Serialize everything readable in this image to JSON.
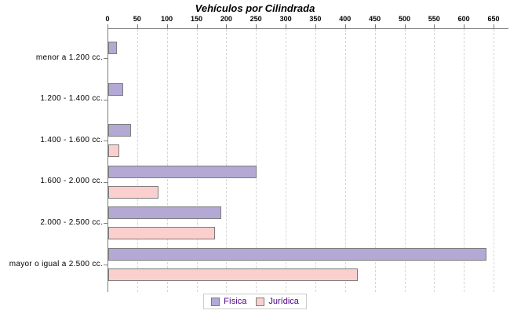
{
  "chart_data": {
    "type": "bar",
    "orientation": "horizontal",
    "title": "Vehículos por Cilindrada",
    "categories": [
      "menor a 1.200 cc.",
      "1.200 - 1.400 cc.",
      "1.400 - 1.600 cc.",
      "1.600 - 2.000 cc.",
      "2.000 - 2.500 cc.",
      "mayor o igual a 2.500 cc."
    ],
    "series": [
      {
        "name": "Física",
        "color": "#b3a9d4",
        "values": [
          15,
          25,
          38,
          250,
          190,
          637
        ]
      },
      {
        "name": "Jurídica",
        "color": "#fccfcf",
        "values": [
          0,
          0,
          19,
          85,
          180,
          420
        ]
      }
    ],
    "xlabel": "",
    "ylabel": "",
    "xlim": [
      0,
      650
    ],
    "xticks": [
      0,
      50,
      100,
      150,
      200,
      250,
      300,
      350,
      400,
      450,
      500,
      550,
      600,
      650
    ],
    "grid": "vertical-dashed",
    "legend_position": "bottom",
    "colors": {
      "bar_border": "#7d7d7d",
      "axis": "#808080",
      "gridline": "#d6d6d6",
      "title_text": "#000000",
      "legend_text": "#4b0082",
      "legend_border": "#cccccc",
      "background": "#ffffff"
    }
  }
}
